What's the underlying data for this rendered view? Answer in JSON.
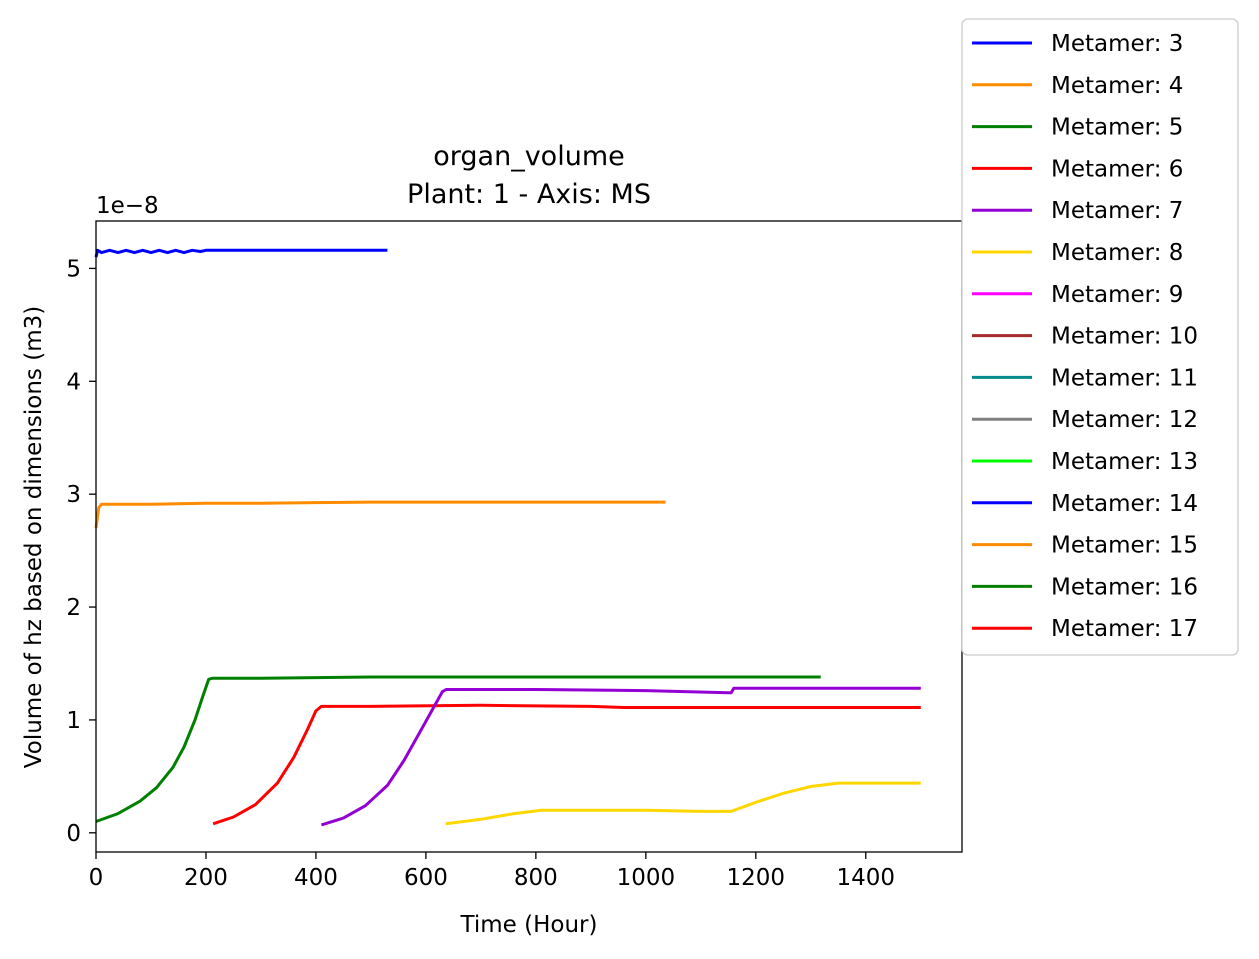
{
  "chart_data": {
    "type": "line",
    "title": "organ_volume",
    "subtitle": "Plant: 1 - Axis: MS",
    "xlabel": "Time (Hour)",
    "ylabel": "Volume of hz based on dimensions (m3)",
    "y_offset_label": "1e−8",
    "xlim": [
      0,
      1575
    ],
    "ylim": [
      -1.7e-09,
      5.42e-08
    ],
    "x_ticks": [
      0,
      200,
      400,
      600,
      800,
      1000,
      1200,
      1400
    ],
    "x_tick_labels": [
      "0",
      "200",
      "400",
      "600",
      "800",
      "1000",
      "1200",
      "1400"
    ],
    "y_ticks": [
      0,
      1e-08,
      2e-08,
      3e-08,
      4e-08,
      5e-08
    ],
    "y_tick_labels": [
      "0",
      "1",
      "2",
      "3",
      "4",
      "5"
    ],
    "grid": false,
    "legend_position": "outside-right",
    "series": [
      {
        "name": "Metamer: 3",
        "color": "#0000ff",
        "x": [
          0,
          3,
          10,
          25,
          40,
          55,
          70,
          85,
          100,
          115,
          130,
          145,
          160,
          175,
          190,
          200,
          300,
          400,
          530
        ],
        "y": [
          5.1e-08,
          5.16e-08,
          5.14e-08,
          5.16e-08,
          5.14e-08,
          5.16e-08,
          5.14e-08,
          5.16e-08,
          5.14e-08,
          5.16e-08,
          5.14e-08,
          5.16e-08,
          5.14e-08,
          5.16e-08,
          5.15e-08,
          5.16e-08,
          5.16e-08,
          5.16e-08,
          5.16e-08
        ]
      },
      {
        "name": "Metamer: 4",
        "color": "#ff8c00",
        "x": [
          0,
          5,
          10,
          50,
          100,
          200,
          300,
          400,
          500,
          700,
          900,
          1036
        ],
        "y": [
          2.7e-08,
          2.88e-08,
          2.91e-08,
          2.91e-08,
          2.91e-08,
          2.92e-08,
          2.92e-08,
          2.925e-08,
          2.93e-08,
          2.93e-08,
          2.93e-08,
          2.93e-08
        ]
      },
      {
        "name": "Metamer: 5",
        "color": "#008000",
        "x": [
          0,
          40,
          80,
          110,
          140,
          160,
          180,
          195,
          205,
          212,
          220,
          300,
          500,
          800,
          1000,
          1200,
          1318
        ],
        "y": [
          1e-09,
          1.7e-09,
          2.8e-09,
          4e-09,
          5.8e-09,
          7.6e-09,
          1e-08,
          1.22e-08,
          1.36e-08,
          1.37e-08,
          1.37e-08,
          1.37e-08,
          1.38e-08,
          1.38e-08,
          1.38e-08,
          1.38e-08,
          1.38e-08
        ]
      },
      {
        "name": "Metamer: 6",
        "color": "#ff0000",
        "x": [
          213,
          250,
          290,
          330,
          360,
          385,
          400,
          410,
          415,
          500,
          700,
          900,
          960,
          1200,
          1500
        ],
        "y": [
          8e-10,
          1.4e-09,
          2.5e-09,
          4.4e-09,
          6.7e-09,
          9.2e-09,
          1.08e-08,
          1.12e-08,
          1.12e-08,
          1.12e-08,
          1.13e-08,
          1.12e-08,
          1.11e-08,
          1.11e-08,
          1.11e-08
        ]
      },
      {
        "name": "Metamer: 7",
        "color": "#9400d3",
        "x": [
          410,
          450,
          490,
          530,
          560,
          590,
          615,
          630,
          637,
          645,
          800,
          1000,
          1150,
          1155,
          1160,
          1300,
          1500
        ],
        "y": [
          7e-10,
          1.3e-09,
          2.4e-09,
          4.2e-09,
          6.4e-09,
          9e-09,
          1.12e-08,
          1.25e-08,
          1.27e-08,
          1.27e-08,
          1.27e-08,
          1.26e-08,
          1.24e-08,
          1.24e-08,
          1.28e-08,
          1.28e-08,
          1.28e-08
        ]
      },
      {
        "name": "Metamer: 8",
        "color": "#ffd700",
        "x": [
          636,
          700,
          760,
          810,
          900,
          1000,
          1100,
          1155,
          1200,
          1250,
          1300,
          1350,
          1400,
          1500
        ],
        "y": [
          8e-10,
          1.2e-09,
          1.7e-09,
          2e-09,
          2e-09,
          2e-09,
          1.9e-09,
          1.9e-09,
          2.7e-09,
          3.5e-09,
          4.1e-09,
          4.4e-09,
          4.4e-09,
          4.4e-09
        ]
      },
      {
        "name": "Metamer: 9",
        "color": "#ff00ff",
        "x": [],
        "y": []
      },
      {
        "name": "Metamer: 10",
        "color": "#a52a2a",
        "x": [],
        "y": []
      },
      {
        "name": "Metamer: 11",
        "color": "#008b8b",
        "x": [],
        "y": []
      },
      {
        "name": "Metamer: 12",
        "color": "#808080",
        "x": [],
        "y": []
      },
      {
        "name": "Metamer: 13",
        "color": "#00ff00",
        "x": [],
        "y": []
      },
      {
        "name": "Metamer: 14",
        "color": "#0000ff",
        "x": [],
        "y": []
      },
      {
        "name": "Metamer: 15",
        "color": "#ff8c00",
        "x": [],
        "y": []
      },
      {
        "name": "Metamer: 16",
        "color": "#008000",
        "x": [],
        "y": []
      },
      {
        "name": "Metamer: 17",
        "color": "#ff0000",
        "x": [],
        "y": []
      }
    ]
  }
}
